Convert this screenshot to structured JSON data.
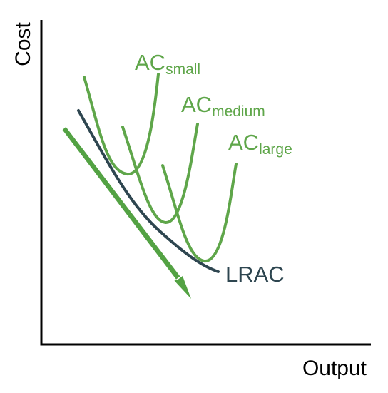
{
  "axes": {
    "y_label": "Cost",
    "x_label": "Output"
  },
  "curves": {
    "ac_small": {
      "main": "AC",
      "sub": "small"
    },
    "ac_medium": {
      "main": "AC",
      "sub": "medium"
    },
    "ac_large": {
      "main": "AC",
      "sub": "large"
    },
    "lrac": {
      "label": "LRAC"
    }
  },
  "colors": {
    "ac_curves": "#5fa64a",
    "lrac": "#2e4650",
    "arrow": "#53a243",
    "axes": "#000000",
    "background": "#ffffff"
  }
}
